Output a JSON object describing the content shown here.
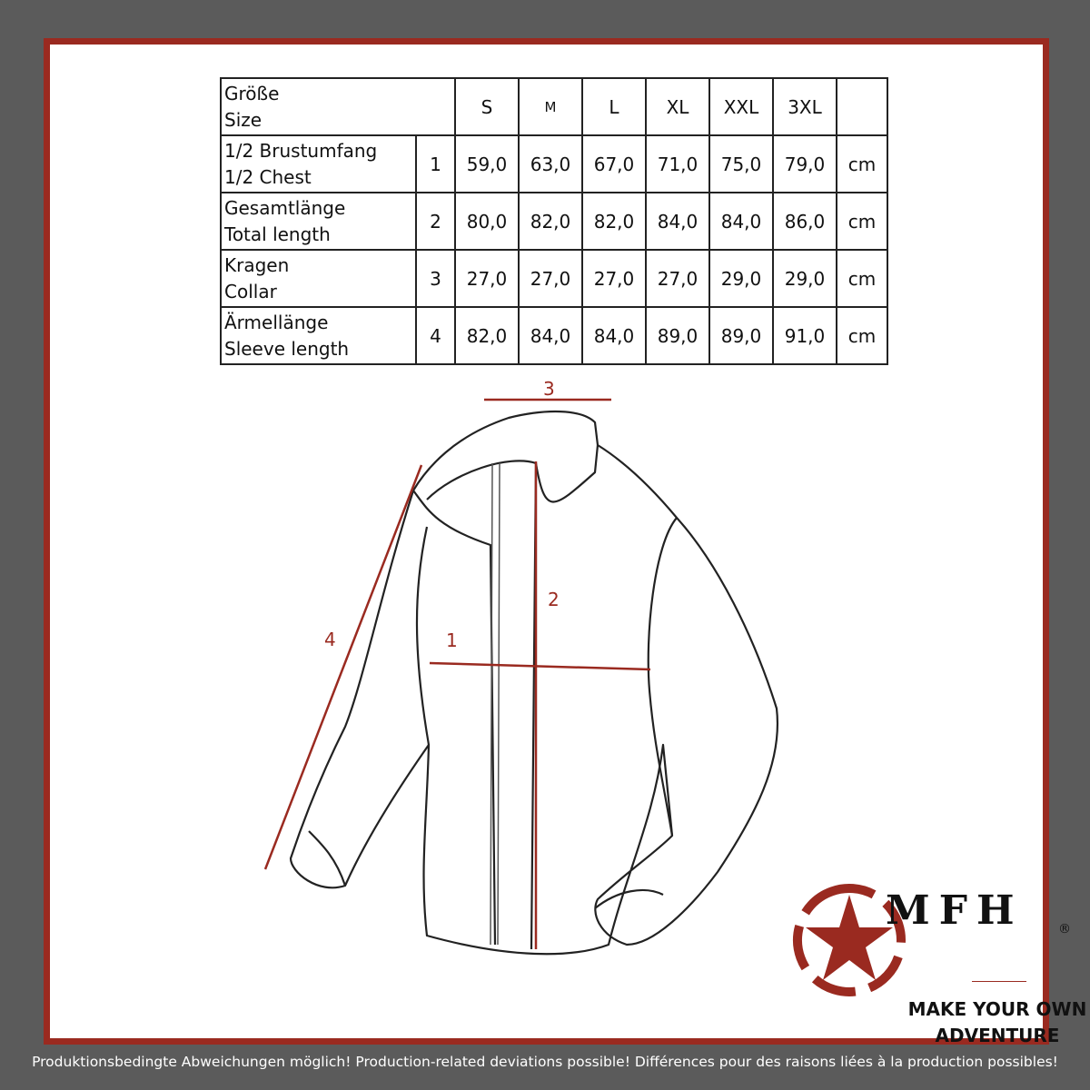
{
  "table": {
    "header": {
      "label_de": "Größe",
      "label_en": "Size",
      "sizes": [
        "S",
        "M",
        "L",
        "XL",
        "XXL",
        "3XL"
      ]
    },
    "rows": [
      {
        "de": "1/2 Brustumfang",
        "en": "1/2 Chest",
        "num": "1",
        "values": [
          "59,0",
          "63,0",
          "67,0",
          "71,0",
          "75,0",
          "79,0"
        ],
        "unit": "cm"
      },
      {
        "de": "Gesamtlänge",
        "en": "Total length",
        "num": "2",
        "values": [
          "80,0",
          "82,0",
          "82,0",
          "84,0",
          "84,0",
          "86,0"
        ],
        "unit": "cm"
      },
      {
        "de": "Kragen",
        "en": "Collar",
        "num": "3",
        "values": [
          "27,0",
          "27,0",
          "27,0",
          "27,0",
          "29,0",
          "29,0"
        ],
        "unit": "cm"
      },
      {
        "de": "Ärmellänge",
        "en": "Sleeve length",
        "num": "4",
        "values": [
          "82,0",
          "84,0",
          "84,0",
          "89,0",
          "89,0",
          "91,0"
        ],
        "unit": "cm"
      }
    ]
  },
  "diagram": {
    "labels": [
      "1",
      "2",
      "3",
      "4"
    ],
    "measure_color": "#9a2a20"
  },
  "logo": {
    "brand": "MFH",
    "registered": "®",
    "slogan_line1": "MAKE YOUR OWN",
    "slogan_line2": "ADVENTURE",
    "icon": "star-in-dashed-circle",
    "color": "#9a2a20"
  },
  "footer": "Produktionsbedingte Abweichungen möglich! Production-related deviations possible! Différences pour des raisons liées à la production possibles!"
}
